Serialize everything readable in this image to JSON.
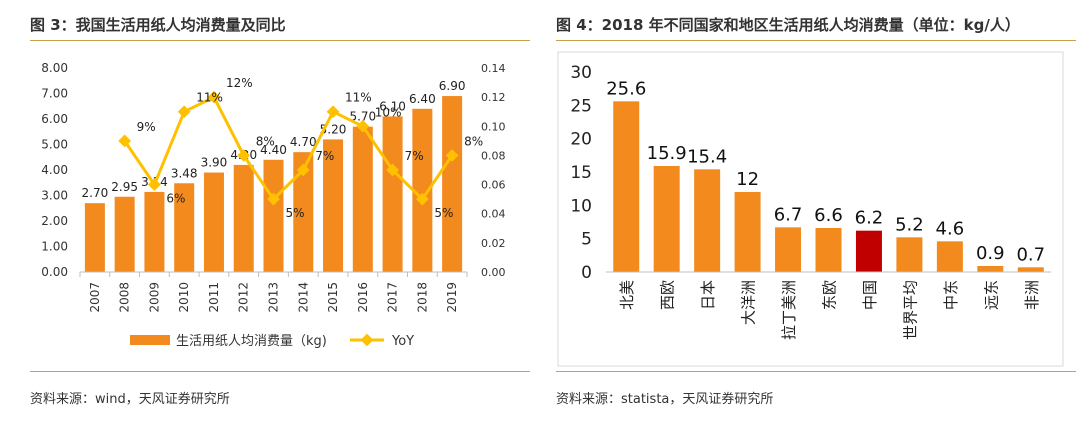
{
  "colors": {
    "bar": "#F28A1E",
    "line": "#FFC000",
    "highlight": "#C00000",
    "axis": "#444444",
    "grid": "#D9D9D9",
    "rule": "#C9A04A"
  },
  "left_panel": {
    "title": "图 3：我国生活用纸人均消费量及同比",
    "source": "资料来源：wind，天风证券研究所"
  },
  "right_panel": {
    "title": "图 4：2018 年不同国家和地区生活用纸人均消费量（单位：kg/人）",
    "source": "资料来源：statista，天风证券研究所"
  },
  "chart_data": [
    {
      "type": "bar",
      "categories": [
        "2007",
        "2008",
        "2009",
        "2010",
        "2011",
        "2012",
        "2013",
        "2014",
        "2015",
        "2016",
        "2017",
        "2018",
        "2019"
      ],
      "series": [
        {
          "name": "生活用纸人均消费量（kg)",
          "type": "bar",
          "axis": "left",
          "values": [
            2.7,
            2.95,
            3.14,
            3.48,
            3.9,
            4.2,
            4.4,
            4.7,
            5.2,
            5.7,
            6.1,
            6.4,
            6.9
          ],
          "labels": [
            "2.70",
            "2.95",
            "3.14",
            "3.48",
            "3.90",
            "4.20",
            "4.40",
            "4.70",
            "5.20",
            "5.70",
            "6.10",
            "6.40",
            "6.90"
          ]
        },
        {
          "name": "YoY",
          "type": "line",
          "axis": "right",
          "values": [
            null,
            0.09,
            0.06,
            0.11,
            0.12,
            0.08,
            0.05,
            0.07,
            0.11,
            0.1,
            0.07,
            0.05,
            0.08
          ],
          "labels": [
            null,
            "9%",
            "6%",
            "11%",
            "12%",
            "8%",
            "5%",
            "7%",
            "11%",
            "10%",
            "7%",
            "5%",
            "8%"
          ]
        }
      ],
      "ylim": [
        0,
        8
      ],
      "yticks": [
        "0.00",
        "1.00",
        "2.00",
        "3.00",
        "4.00",
        "5.00",
        "6.00",
        "7.00",
        "8.00"
      ],
      "y2lim": [
        0,
        0.14
      ],
      "y2ticks": [
        "0.00",
        "0.02",
        "0.04",
        "0.06",
        "0.08",
        "0.10",
        "0.12",
        "0.14"
      ],
      "legend": "bottom",
      "grid": false
    },
    {
      "type": "bar",
      "categories": [
        "北美",
        "西欧",
        "日本",
        "大洋洲",
        "拉丁美洲",
        "东欧",
        "中国",
        "世界平均",
        "中东",
        "远东",
        "非洲"
      ],
      "values": [
        25.6,
        15.9,
        15.4,
        12,
        6.7,
        6.6,
        6.2,
        5.2,
        4.6,
        0.9,
        0.7
      ],
      "labels": [
        "25.6",
        "15.9",
        "15.4",
        "12",
        "6.7",
        "6.6",
        "6.2",
        "5.2",
        "4.6",
        "0.9",
        "0.7"
      ],
      "highlight": "中国",
      "ylim": [
        0,
        30
      ],
      "yticks": [
        "0",
        "5",
        "10",
        "15",
        "20",
        "25",
        "30"
      ],
      "grid": false
    }
  ]
}
